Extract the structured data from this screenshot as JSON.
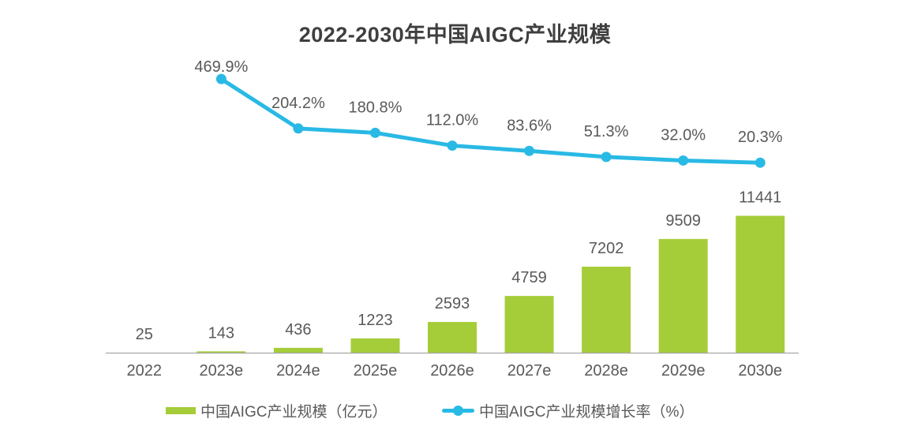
{
  "page": {
    "title": "2022-2030年中国AIGC产业规模"
  },
  "colors": {
    "background": "#ffffff",
    "bar": "#a5cd39",
    "line": "#29b9e5",
    "title_text": "#3f3f3f",
    "label_text": "#595959",
    "axis_line": "#a6a6a6"
  },
  "legend": {
    "items": [
      {
        "label": "中国AIGC产业规模（亿元）",
        "marker": "bar-swatch"
      },
      {
        "label": "中国AIGC产业规模增长率（%）",
        "marker": "line-dot"
      }
    ]
  },
  "chart_data": {
    "type": "bar",
    "subtype": "bar-line-combo",
    "title": "2022-2030年中国AIGC产业规模",
    "categories": [
      "2022",
      "2023e",
      "2024e",
      "2025e",
      "2026e",
      "2027e",
      "2028e",
      "2029e",
      "2030e"
    ],
    "series": [
      {
        "name": "中国AIGC产业规模（亿元）",
        "type": "bar",
        "values": [
          25,
          143,
          436,
          1223,
          2593,
          4759,
          7202,
          9509,
          11441
        ],
        "labels": [
          "25",
          "143",
          "436",
          "1223",
          "2593",
          "4759",
          "7202",
          "9509",
          "11441"
        ],
        "color": "#a5cd39"
      },
      {
        "name": "中国AIGC产业规模增长率（%）",
        "type": "line",
        "values": [
          null,
          469.9,
          204.2,
          180.8,
          112.0,
          83.6,
          51.3,
          32.0,
          20.3
        ],
        "labels": [
          "",
          "469.9%",
          "204.2%",
          "180.8%",
          "112.0%",
          "83.6%",
          "51.3%",
          "32.0%",
          "20.3%"
        ],
        "color": "#29b9e5"
      }
    ],
    "xlabel": "",
    "ylabel": "",
    "bar_axis": {
      "min": 0,
      "max": 12000,
      "visible": false
    },
    "line_axis": {
      "min": 0,
      "max": 500,
      "unit": "%",
      "visible": false
    },
    "grid": false,
    "data_labels": true,
    "legend_position": "bottom"
  }
}
